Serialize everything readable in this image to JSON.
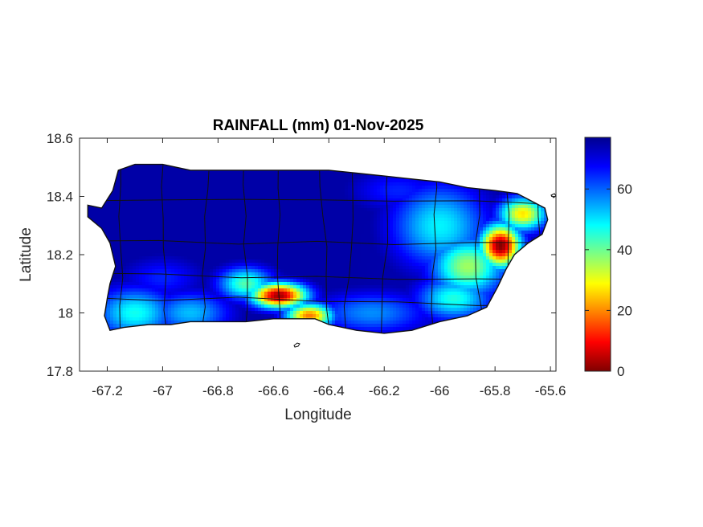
{
  "chart_data": {
    "type": "heatmap",
    "title": "RAINFALL (mm) 01-Nov-2025",
    "xlabel": "Longitude",
    "ylabel": "Latitude",
    "xlim": [
      -67.3,
      -65.58
    ],
    "ylim": [
      17.8,
      18.6
    ],
    "xticks": [
      -67.2,
      -67,
      -66.8,
      -66.6,
      -66.4,
      -66.2,
      -66,
      -65.8,
      -65.6
    ],
    "xtick_labels": [
      "-67.2",
      "-67",
      "-66.8",
      "-66.6",
      "-66.4",
      "-66.2",
      "-66",
      "-65.8",
      "-65.6"
    ],
    "yticks": [
      17.8,
      18,
      18.2,
      18.4,
      18.6
    ],
    "ytick_labels": [
      "17.8",
      "18",
      "18.2",
      "18.4",
      "18.6"
    ],
    "colorbar": {
      "colormap": "jet",
      "range": [
        0,
        77
      ],
      "ticks": [
        0,
        20,
        40,
        60
      ],
      "tick_labels": [
        "0",
        "20",
        "40",
        "60"
      ]
    },
    "outline": [
      [
        -67.27,
        18.37
      ],
      [
        -67.22,
        18.36
      ],
      [
        -67.18,
        18.42
      ],
      [
        -67.16,
        18.49
      ],
      [
        -67.1,
        18.51
      ],
      [
        -67.0,
        18.51
      ],
      [
        -66.9,
        18.49
      ],
      [
        -66.8,
        18.49
      ],
      [
        -66.7,
        18.49
      ],
      [
        -66.6,
        18.49
      ],
      [
        -66.5,
        18.49
      ],
      [
        -66.4,
        18.49
      ],
      [
        -66.3,
        18.48
      ],
      [
        -66.2,
        18.47
      ],
      [
        -66.1,
        18.46
      ],
      [
        -66.0,
        18.45
      ],
      [
        -65.9,
        18.43
      ],
      [
        -65.8,
        18.42
      ],
      [
        -65.72,
        18.41
      ],
      [
        -65.66,
        18.38
      ],
      [
        -65.62,
        18.36
      ],
      [
        -65.61,
        18.32
      ],
      [
        -65.63,
        18.27
      ],
      [
        -65.68,
        18.24
      ],
      [
        -65.73,
        18.2
      ],
      [
        -65.76,
        18.15
      ],
      [
        -65.79,
        18.09
      ],
      [
        -65.83,
        18.02
      ],
      [
        -65.9,
        17.99
      ],
      [
        -66.0,
        17.97
      ],
      [
        -66.1,
        17.94
      ],
      [
        -66.2,
        17.93
      ],
      [
        -66.3,
        17.94
      ],
      [
        -66.4,
        17.96
      ],
      [
        -66.45,
        17.98
      ],
      [
        -66.52,
        17.98
      ],
      [
        -66.6,
        17.98
      ],
      [
        -66.7,
        17.97
      ],
      [
        -66.8,
        17.97
      ],
      [
        -66.9,
        17.97
      ],
      [
        -66.97,
        17.96
      ],
      [
        -67.05,
        17.96
      ],
      [
        -67.14,
        17.95
      ],
      [
        -67.19,
        17.94
      ],
      [
        -67.21,
        17.99
      ],
      [
        -67.2,
        18.05
      ],
      [
        -67.19,
        18.1
      ],
      [
        -67.17,
        18.16
      ],
      [
        -67.19,
        18.24
      ],
      [
        -67.22,
        18.29
      ],
      [
        -67.27,
        18.33
      ]
    ],
    "rain_field": {
      "base": 3,
      "features": [
        {
          "lon": -66.58,
          "lat": 18.06,
          "value": 75,
          "sx": 0.07,
          "sy": 0.03
        },
        {
          "lon": -66.47,
          "lat": 17.99,
          "value": 58,
          "sx": 0.06,
          "sy": 0.03
        },
        {
          "lon": -66.7,
          "lat": 18.1,
          "value": 35,
          "sx": 0.07,
          "sy": 0.04
        },
        {
          "lon": -65.78,
          "lat": 18.23,
          "value": 76,
          "sx": 0.05,
          "sy": 0.05
        },
        {
          "lon": -65.7,
          "lat": 18.34,
          "value": 50,
          "sx": 0.06,
          "sy": 0.04
        },
        {
          "lon": -65.9,
          "lat": 18.16,
          "value": 40,
          "sx": 0.09,
          "sy": 0.07
        },
        {
          "lon": -66.0,
          "lat": 18.3,
          "value": 28,
          "sx": 0.12,
          "sy": 0.1
        },
        {
          "lon": -65.95,
          "lat": 18.05,
          "value": 30,
          "sx": 0.09,
          "sy": 0.05
        },
        {
          "lon": -67.1,
          "lat": 18.0,
          "value": 30,
          "sx": 0.1,
          "sy": 0.06
        },
        {
          "lon": -66.9,
          "lat": 18.0,
          "value": 24,
          "sx": 0.1,
          "sy": 0.05
        },
        {
          "lon": -66.25,
          "lat": 18.0,
          "value": 20,
          "sx": 0.14,
          "sy": 0.05
        },
        {
          "lon": -66.15,
          "lat": 18.42,
          "value": 12,
          "sx": 0.12,
          "sy": 0.05
        },
        {
          "lon": -67.0,
          "lat": 18.12,
          "value": 12,
          "sx": 0.1,
          "sy": 0.05
        }
      ]
    }
  }
}
